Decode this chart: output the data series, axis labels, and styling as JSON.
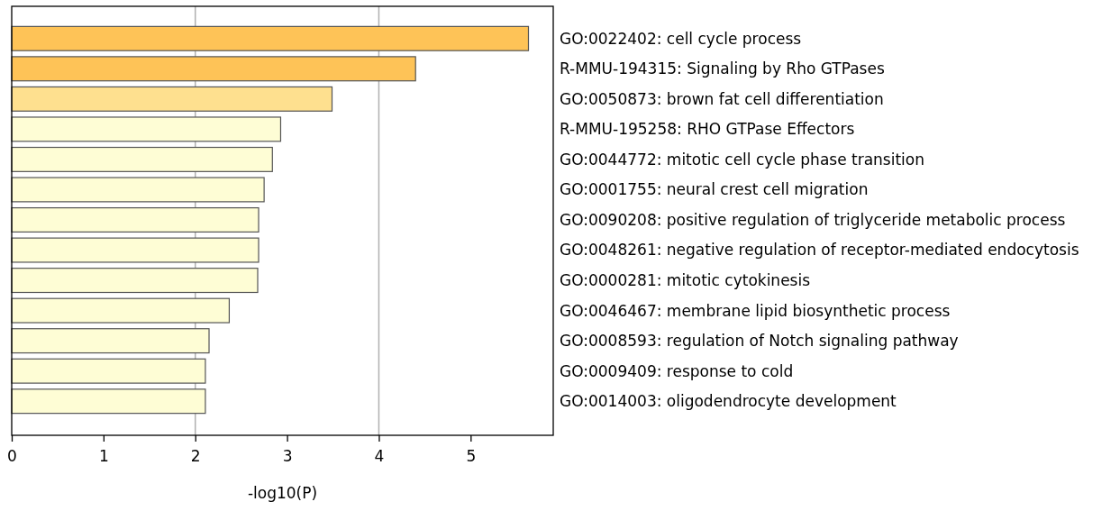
{
  "chart_data": {
    "type": "bar",
    "orientation": "horizontal",
    "xlabel": "-log10(P)",
    "categories": [
      "GO:0022402: cell cycle process",
      "R-MMU-194315: Signaling by Rho GTPases",
      "GO:0050873: brown fat cell differentiation",
      "R-MMU-195258: RHO GTPase Effectors",
      "GO:0044772: mitotic cell cycle phase transition",
      "GO:0001755: neural crest cell migration",
      "GO:0090208: positive regulation of triglyceride metabolic process",
      "GO:0048261: negative regulation of receptor-mediated endocytosis",
      "GO:0000281: mitotic cytokinesis",
      "GO:0046467: membrane lipid biosynthetic process",
      "GO:0008593: regulation of Notch signaling pathway",
      "GO:0009409: response to cold",
      "GO:0014003: oligodendrocyte development"
    ],
    "values": [
      5.63,
      4.4,
      3.49,
      2.93,
      2.84,
      2.75,
      2.69,
      2.69,
      2.68,
      2.37,
      2.15,
      2.11,
      2.11
    ],
    "colors": [
      "#fec357",
      "#fec357",
      "#fee08f",
      "#fefdd5",
      "#fefdd5",
      "#fefdd5",
      "#fefdd5",
      "#fefdd5",
      "#fefdd5",
      "#fefdd5",
      "#fefdd5",
      "#fefdd5",
      "#fefdd5"
    ],
    "xlim": [
      0,
      5.9
    ],
    "xticks": [
      0,
      1,
      2,
      3,
      4,
      5
    ],
    "ref_lines": [
      {
        "axis": "x",
        "value": 2,
        "color": "#b0b0b0"
      },
      {
        "axis": "x",
        "value": 4,
        "color": "#b0b0b0"
      }
    ]
  }
}
